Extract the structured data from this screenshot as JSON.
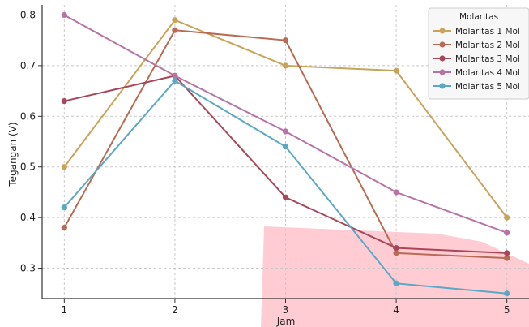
{
  "chart_data": {
    "type": "line",
    "title": "",
    "xlabel": "Jam",
    "ylabel": "Tegangan (V)",
    "x": [
      1,
      2,
      3,
      4,
      5
    ],
    "xticks": [
      "1",
      "2",
      "3",
      "4",
      "5"
    ],
    "xlim": [
      0.8,
      5.2
    ],
    "ylim": [
      0.24,
      0.82
    ],
    "yticks": [
      "0.3",
      "0.4",
      "0.5",
      "0.6",
      "0.7",
      "0.8"
    ],
    "grid": true,
    "legend": {
      "title": "Molaritas",
      "placement": "top-right"
    },
    "series": [
      {
        "name": "Molaritas 1 Mol",
        "color": "#c9a35a",
        "values": [
          0.5,
          0.79,
          0.7,
          0.69,
          0.4
        ]
      },
      {
        "name": "Molaritas 2 Mol",
        "color": "#b96a52",
        "values": [
          0.38,
          0.77,
          0.75,
          0.33,
          0.32
        ]
      },
      {
        "name": "Molaritas 3 Mol",
        "color": "#a8475a",
        "values": [
          0.63,
          0.68,
          0.44,
          0.34,
          0.33
        ]
      },
      {
        "name": "Molaritas 4 Mol",
        "color": "#b773a4",
        "values": [
          0.8,
          0.68,
          0.57,
          0.45,
          0.37
        ]
      },
      {
        "name": "Molaritas 5 Mol",
        "color": "#5aa8c3",
        "values": [
          0.42,
          0.67,
          0.54,
          0.27,
          0.25
        ]
      }
    ]
  }
}
